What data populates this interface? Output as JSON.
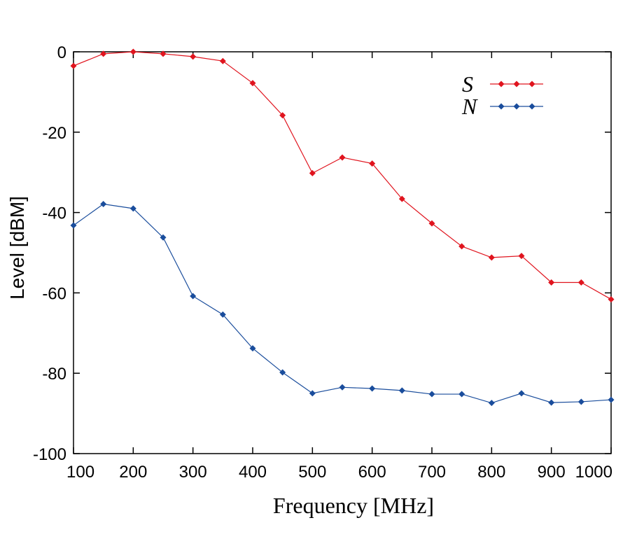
{
  "chart_data": {
    "type": "line",
    "title": "",
    "xlabel": "Frequency [MHz]",
    "ylabel": "Level [dBM]",
    "xlim": [
      100,
      1000
    ],
    "ylim": [
      -100,
      0
    ],
    "xticks": [
      100,
      200,
      300,
      400,
      500,
      600,
      700,
      800,
      900,
      1000
    ],
    "yticks": [
      0,
      -20,
      -40,
      -60,
      -80,
      -100
    ],
    "xtick_labels": [
      "100",
      "200",
      "300",
      "400",
      "500",
      "600",
      "700",
      "800",
      "900",
      "1000"
    ],
    "ytick_labels": [
      "0",
      "-20",
      "-40",
      "-60",
      "-80",
      "-100"
    ],
    "legend_position": "top-right",
    "grid": false,
    "x": [
      100,
      150,
      200,
      250,
      300,
      350,
      400,
      450,
      500,
      550,
      600,
      650,
      700,
      750,
      800,
      850,
      900,
      950,
      1000
    ],
    "series": [
      {
        "name": "S",
        "color": "#e0141e",
        "values": [
          -3.5,
          -0.5,
          0,
          -0.5,
          -1.2,
          -2.3,
          -7.8,
          -15.8,
          -30.2,
          -26.3,
          -27.8,
          -36.6,
          -42.7,
          -48.4,
          -51.2,
          -50.8,
          -57.4,
          -57.4,
          -61.6
        ]
      },
      {
        "name": "N",
        "color": "#1a4d9c",
        "values": [
          -43.2,
          -37.9,
          -39.0,
          -46.2,
          -60.8,
          -65.4,
          -73.8,
          -79.8,
          -85.0,
          -83.5,
          -83.8,
          -84.3,
          -85.2,
          -85.2,
          -87.4,
          -85.0,
          -87.3,
          -87.1,
          -86.6
        ]
      }
    ]
  }
}
